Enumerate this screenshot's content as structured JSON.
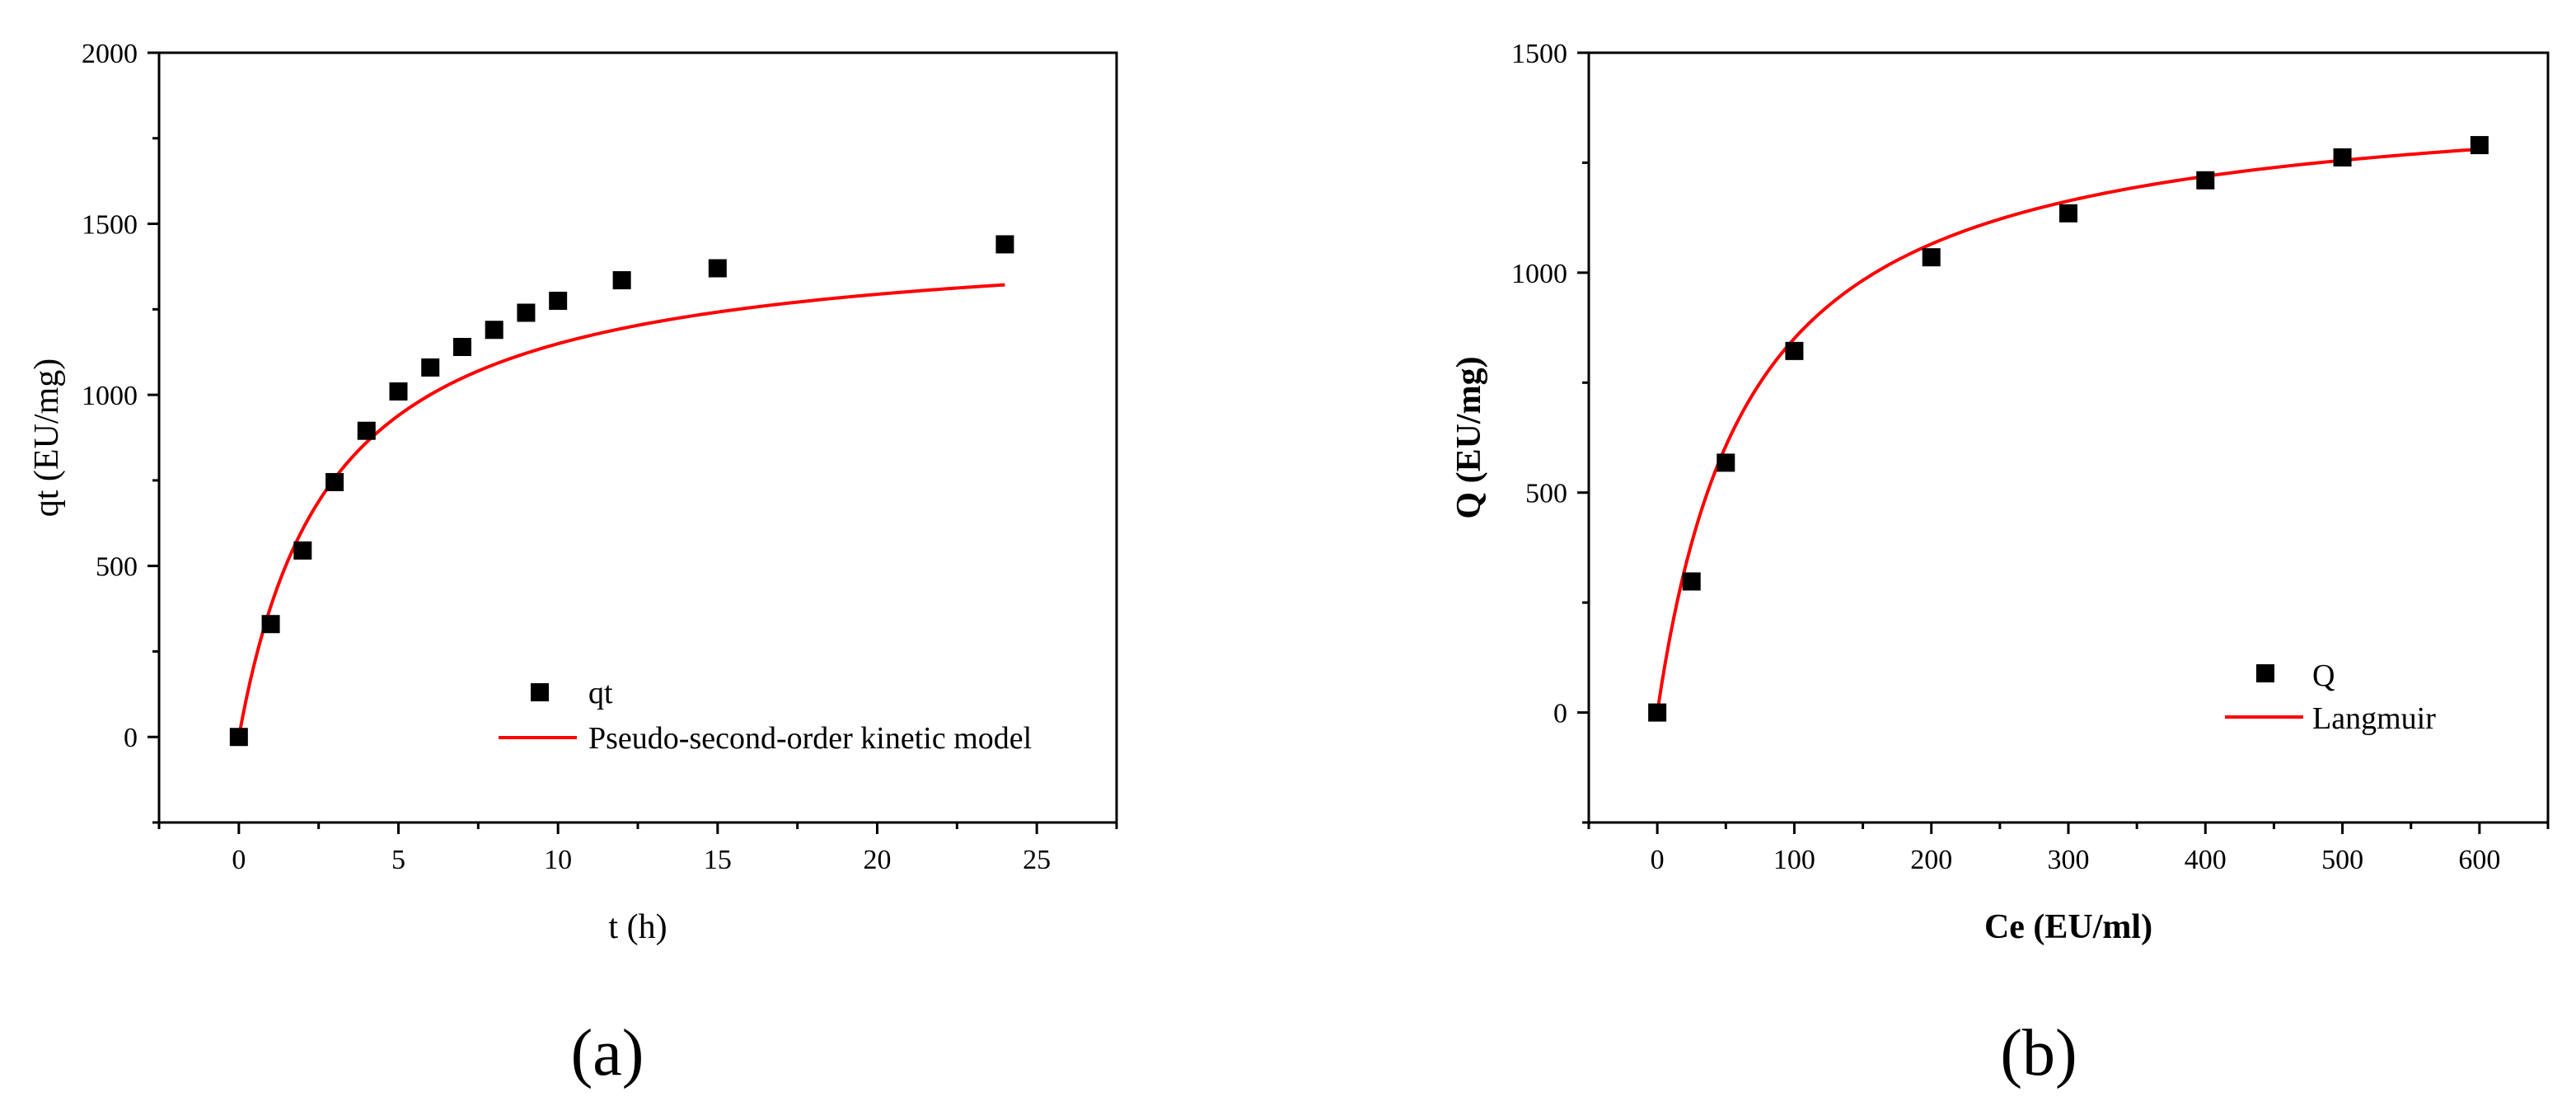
{
  "chart_data": [
    {
      "type": "scatter",
      "panel_label": "(a)",
      "xlabel": "t (h)",
      "ylabel": "qt (EU/mg)",
      "xlim": [
        -2.5,
        27.5
      ],
      "ylim": [
        -250,
        2000
      ],
      "xticks": [
        0,
        5,
        10,
        15,
        20,
        25
      ],
      "yticks": [
        0,
        500,
        1000,
        1500,
        2000
      ],
      "grid": false,
      "legend_position": "bottom-right",
      "series": [
        {
          "name": "qt",
          "kind": "scatter",
          "marker": "square",
          "color": "#000000",
          "x": [
            0,
            1,
            2,
            3,
            4,
            5,
            6,
            7,
            8,
            9,
            10,
            12,
            15,
            24
          ],
          "y": [
            0,
            330,
            545,
            745,
            895,
            1010,
            1080,
            1140,
            1190,
            1240,
            1275,
            1335,
            1370,
            1440
          ]
        },
        {
          "name": "Pseudo-second-order kinetic model",
          "kind": "line",
          "color": "#ff0000",
          "model": "pseudo-second-order",
          "params": {
            "qe": 1480,
            "k": 0.000235
          },
          "x_range": [
            0,
            24
          ]
        }
      ]
    },
    {
      "type": "scatter",
      "panel_label": "(b)",
      "xlabel": "Ce (EU/ml)",
      "ylabel": "Q (EU/mg)",
      "xlim": [
        -50,
        650
      ],
      "ylim": [
        -250,
        1500
      ],
      "xticks": [
        0,
        100,
        200,
        300,
        400,
        500,
        600
      ],
      "yticks": [
        0,
        500,
        1000,
        1500
      ],
      "grid": false,
      "legend_position": "bottom-right",
      "series": [
        {
          "name": "Q",
          "kind": "scatter",
          "marker": "square",
          "color": "#000000",
          "x": [
            0,
            25,
            50,
            100,
            200,
            300,
            400,
            500,
            600
          ],
          "y": [
            0,
            298,
            568,
            822,
            1035,
            1135,
            1210,
            1262,
            1290
          ]
        },
        {
          "name": "Langmuir",
          "kind": "line",
          "color": "#ff0000",
          "model": "langmuir",
          "params": {
            "qm": 1425,
            "b": 0.0148
          },
          "x_range": [
            0,
            600
          ]
        }
      ]
    }
  ]
}
